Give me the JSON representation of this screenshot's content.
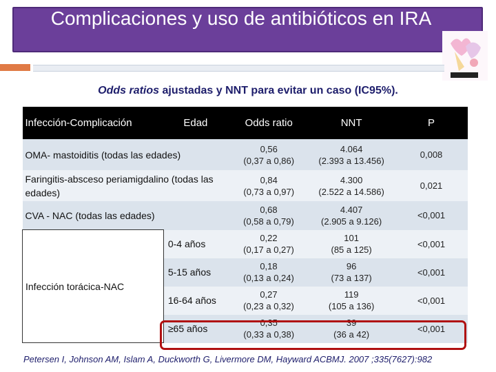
{
  "title": "Complicaciones  y uso de antibióticos en IRA",
  "subtitle_italic": "Odds ratios",
  "subtitle_rest": " ajustadas y NNT para evitar un caso (IC95%).",
  "table": {
    "headers": [
      "Infección-Complicación",
      "Edad",
      "Odds ratio",
      "NNT",
      "P"
    ],
    "rows": [
      {
        "label": "OMA- mastoiditis (todas las edades)",
        "or": "0,56",
        "or_ci": "(0,37 a 0,86)",
        "nnt": "4.064",
        "nnt_ci": "(2.393 a 13.456)",
        "p": "0,008"
      },
      {
        "label": "Faringitis-absceso periamigdalino (todas las edades)",
        "or": "0,84",
        "or_ci": "(0,73 a 0,97)",
        "nnt": "4.300",
        "nnt_ci": "(2.522 a 14.586)",
        "p": "0,021"
      },
      {
        "label": "CVA - NAC (todas las edades)",
        "or": "0,68",
        "or_ci": "(0,58 a 0,79)",
        "nnt": "4.407",
        "nnt_ci": "(2.905 a 9.126)",
        "p": "<0,001"
      }
    ],
    "group_label": "Infección torácica-NAC",
    "group_rows": [
      {
        "age": "0-4 años",
        "or": "0,22",
        "or_ci": "(0,17 a 0,27)",
        "nnt": "101",
        "nnt_ci": "(85 a 125)",
        "p": "<0,001"
      },
      {
        "age": "5-15 años",
        "or": "0,18",
        "or_ci": "(0,13 a 0,24)",
        "nnt": "96",
        "nnt_ci": "(73 a 137)",
        "p": "<0,001"
      },
      {
        "age": "16-64 años",
        "or": "0,27",
        "or_ci": "(0,23 a 0,32)",
        "nnt": "119",
        "nnt_ci": "(105 a 136)",
        "p": "<0,001"
      },
      {
        "age": "≥65 años",
        "or": "0,35",
        "or_ci": "(0,33 a 0,38)",
        "nnt": "39",
        "nnt_ci": "(36 a 42)",
        "p": "<0,001"
      }
    ]
  },
  "reference": "Petersen I, Johnson AM, Islam A, Duckworth G, Livermore DM, Hayward ACBMJ. 2007 ;335(7627):982",
  "colors": {
    "title_bg": "#6b3f9a",
    "header_bg": "#000000",
    "highlight": "#b01010",
    "accent": "#e07a45"
  }
}
